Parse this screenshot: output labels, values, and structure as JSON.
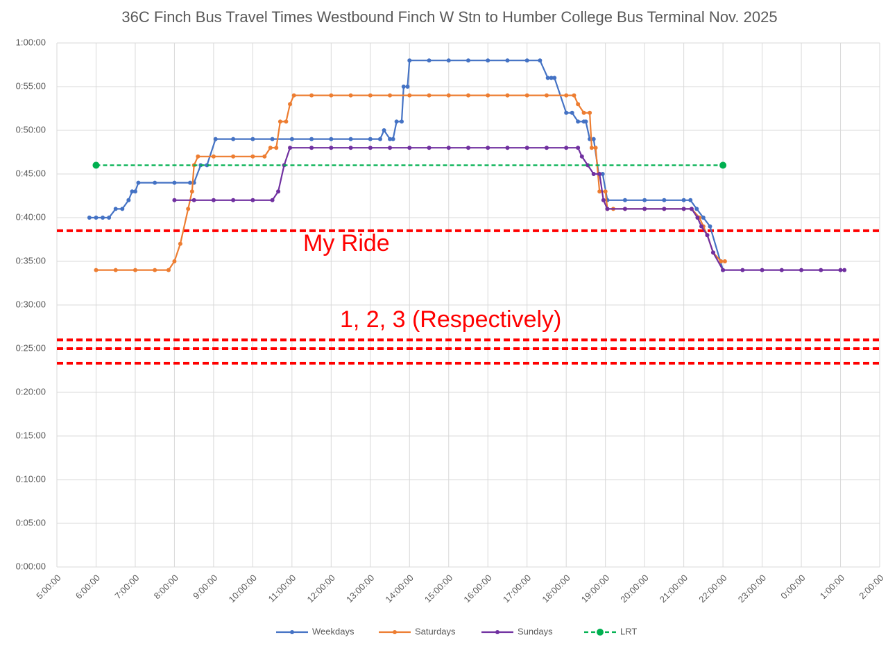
{
  "chart_data": {
    "type": "line",
    "title": "36C Finch Bus Travel Times Westbound Finch W Stn to Humber College Bus Terminal Nov. 2025",
    "xlim": [
      5,
      26
    ],
    "xticks": [
      {
        "value": 5,
        "label": "5:00:00"
      },
      {
        "value": 6,
        "label": "6:00:00"
      },
      {
        "value": 7,
        "label": "7:00:00"
      },
      {
        "value": 8,
        "label": "8:00:00"
      },
      {
        "value": 9,
        "label": "9:00:00"
      },
      {
        "value": 10,
        "label": "10:00:00"
      },
      {
        "value": 11,
        "label": "11:00:00"
      },
      {
        "value": 12,
        "label": "12:00:00"
      },
      {
        "value": 13,
        "label": "13:00:00"
      },
      {
        "value": 14,
        "label": "14:00:00"
      },
      {
        "value": 15,
        "label": "15:00:00"
      },
      {
        "value": 16,
        "label": "16:00:00"
      },
      {
        "value": 17,
        "label": "17:00:00"
      },
      {
        "value": 18,
        "label": "18:00:00"
      },
      {
        "value": 19,
        "label": "19:00:00"
      },
      {
        "value": 20,
        "label": "20:00:00"
      },
      {
        "value": 21,
        "label": "21:00:00"
      },
      {
        "value": 22,
        "label": "22:00:00"
      },
      {
        "value": 23,
        "label": "23:00:00"
      },
      {
        "value": 24,
        "label": "0:00:00"
      },
      {
        "value": 25,
        "label": "1:00:00"
      },
      {
        "value": 26,
        "label": "2:00:00"
      }
    ],
    "ylim": [
      0,
      60
    ],
    "yticks": [
      {
        "value": 0,
        "label": "0:00:00"
      },
      {
        "value": 5,
        "label": "0:05:00"
      },
      {
        "value": 10,
        "label": "0:10:00"
      },
      {
        "value": 15,
        "label": "0:15:00"
      },
      {
        "value": 20,
        "label": "0:20:00"
      },
      {
        "value": 25,
        "label": "0:25:00"
      },
      {
        "value": 30,
        "label": "0:30:00"
      },
      {
        "value": 35,
        "label": "0:35:00"
      },
      {
        "value": 40,
        "label": "0:40:00"
      },
      {
        "value": 45,
        "label": "0:45:00"
      },
      {
        "value": 50,
        "label": "0:50:00"
      },
      {
        "value": 55,
        "label": "0:55:00"
      },
      {
        "value": 60,
        "label": "1:00:00"
      }
    ],
    "grid": true,
    "legend": "bottom",
    "series": [
      {
        "name": "Weekdays",
        "color": "#4472c4",
        "x": [
          5.83,
          6,
          6.17,
          6.33,
          6.5,
          6.67,
          6.83,
          6.92,
          7,
          7.08,
          7.5,
          8,
          8.4,
          8.5,
          8.67,
          8.83,
          9.05,
          9.5,
          10,
          10.5,
          11,
          11.5,
          12,
          12.5,
          13,
          13.25,
          13.35,
          13.5,
          13.58,
          13.67,
          13.8,
          13.85,
          13.95,
          14,
          14.5,
          15,
          15.5,
          16,
          16.5,
          17,
          17.33,
          17.53,
          17.62,
          17.7,
          18,
          18.15,
          18.3,
          18.45,
          18.5,
          18.6,
          18.7,
          18.83,
          18.93,
          19.05,
          19.5,
          20,
          20.5,
          21,
          21.17,
          21.33,
          21.5,
          21.67,
          22
        ],
        "values": [
          40,
          40,
          40,
          40,
          41,
          41,
          42,
          43,
          43,
          44,
          44,
          44,
          44,
          44,
          46,
          46,
          49,
          49,
          49,
          49,
          49,
          49,
          49,
          49,
          49,
          49,
          50,
          49,
          49,
          51,
          51,
          55,
          55,
          58,
          58,
          58,
          58,
          58,
          58,
          58,
          58,
          56,
          56,
          56,
          52,
          52,
          51,
          51,
          51,
          49,
          49,
          45,
          45,
          42,
          42,
          42,
          42,
          42,
          42,
          41,
          40,
          39,
          34
        ]
      },
      {
        "name": "Saturdays",
        "color": "#ed7d31",
        "x": [
          6,
          6.5,
          7,
          7.5,
          7.85,
          8,
          8.15,
          8.35,
          8.45,
          8.5,
          8.6,
          9,
          9.5,
          10,
          10.3,
          10.45,
          10.6,
          10.7,
          10.85,
          10.95,
          11.05,
          11.5,
          12,
          12.5,
          13,
          13.5,
          14,
          14.5,
          15,
          15.5,
          16,
          16.5,
          17,
          17.5,
          18,
          18.2,
          18.3,
          18.45,
          18.6,
          18.65,
          18.75,
          18.85,
          19,
          19.05,
          19.2,
          19.5,
          20,
          20.5,
          21,
          21.2,
          21.4,
          21.5,
          21.6,
          21.75,
          21.95,
          22.05
        ],
        "values": [
          34,
          34,
          34,
          34,
          34,
          35,
          37,
          41,
          43,
          46,
          47,
          47,
          47,
          47,
          47,
          48,
          48,
          51,
          51,
          53,
          54,
          54,
          54,
          54,
          54,
          54,
          54,
          54,
          54,
          54,
          54,
          54,
          54,
          54,
          54,
          54,
          53,
          52,
          52,
          48,
          48,
          43,
          43,
          41,
          41,
          41,
          41,
          41,
          41,
          41,
          40,
          39,
          38,
          36,
          35,
          35
        ]
      },
      {
        "name": "Sundays",
        "color": "#7030a0",
        "x": [
          8,
          8.5,
          9,
          9.5,
          10,
          10.5,
          10.65,
          10.8,
          10.95,
          11.5,
          12,
          12.5,
          13,
          13.5,
          14,
          14.5,
          15,
          15.5,
          16,
          16.5,
          17,
          17.5,
          18,
          18.3,
          18.4,
          18.55,
          18.7,
          18.85,
          18.95,
          19.05,
          19.5,
          20,
          20.5,
          21,
          21.2,
          21.35,
          21.45,
          21.6,
          21.75,
          22,
          22.5,
          23,
          23.5,
          24,
          24.5,
          25,
          25.1
        ],
        "values": [
          42,
          42,
          42,
          42,
          42,
          42,
          43,
          46,
          48,
          48,
          48,
          48,
          48,
          48,
          48,
          48,
          48,
          48,
          48,
          48,
          48,
          48,
          48,
          48,
          47,
          46,
          45,
          45,
          42,
          41,
          41,
          41,
          41,
          41,
          41,
          40,
          39,
          38,
          36,
          34,
          34,
          34,
          34,
          34,
          34,
          34,
          34
        ]
      },
      {
        "name": "LRT",
        "color": "#00b050",
        "dashed": true,
        "x": [
          6,
          22
        ],
        "values": [
          46,
          46
        ]
      }
    ],
    "reference_lines": {
      "color": "#ff0000",
      "values": [
        38.5,
        26,
        25,
        23.33
      ]
    },
    "annotations": [
      "My Ride",
      "1, 2, 3 (Respectively)"
    ]
  }
}
